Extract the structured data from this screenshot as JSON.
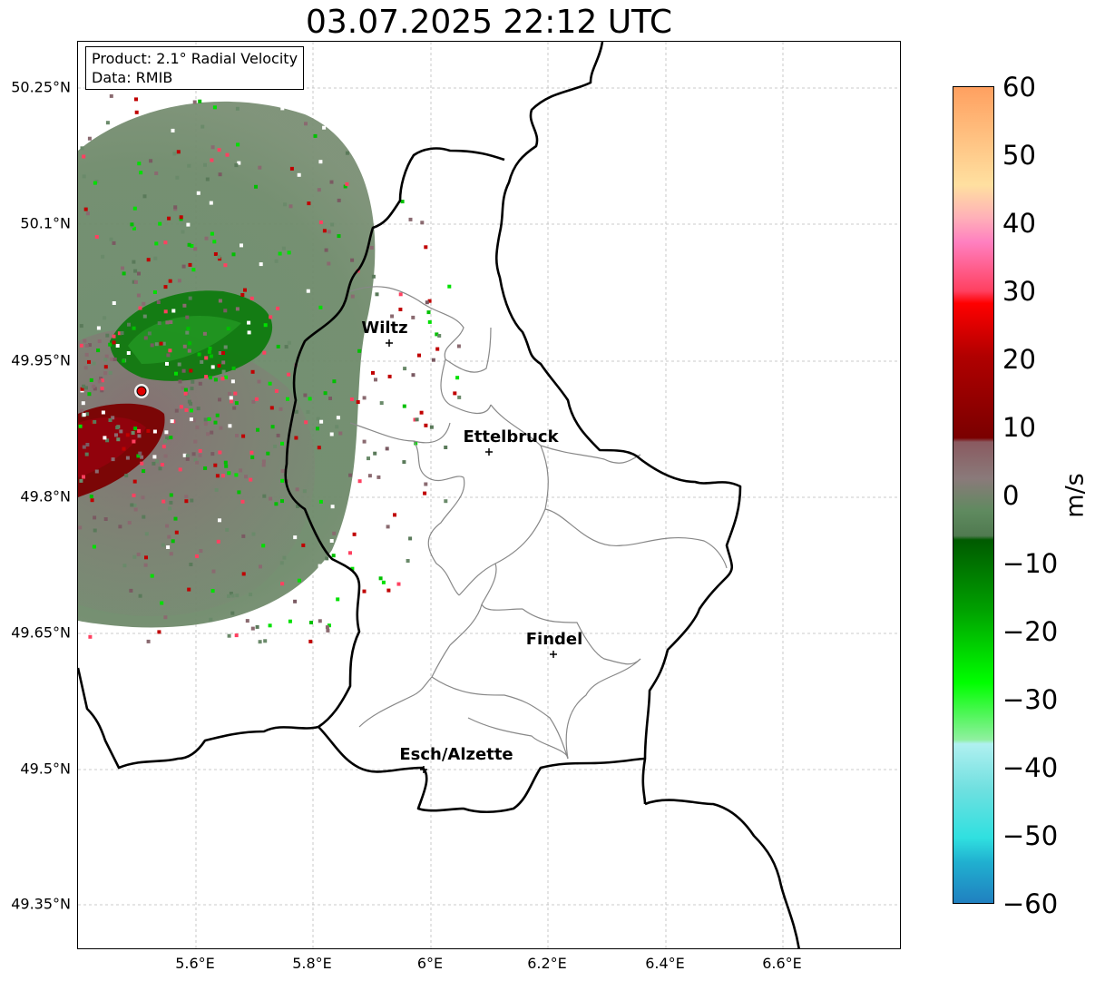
{
  "title": "03.07.2025 22:12 UTC",
  "info": {
    "product": "Product: 2.1° Radial Velocity",
    "data_source": "Data: RMIB"
  },
  "lat_labels": [
    "50.25°N",
    "50.1°N",
    "49.95°N",
    "49.8°N",
    "49.65°N",
    "49.5°N",
    "49.35°N"
  ],
  "lon_labels": [
    "5.6°E",
    "5.8°E",
    "6°E",
    "6.2°E",
    "6.4°E",
    "6.6°E"
  ],
  "cities": [
    "Wiltz",
    "Ettelbruck",
    "Findel",
    "Esch/Alzette"
  ],
  "colorbar": {
    "unit": "m/s",
    "ticks": [
      "60",
      "50",
      "40",
      "30",
      "20",
      "10",
      "0",
      "−10",
      "−20",
      "−30",
      "−40",
      "−50",
      "−60"
    ],
    "range": [
      -60,
      60
    ],
    "colors": {
      "positive_high": "#ffa060",
      "pink": "#ff80c0",
      "red": "#ff0000",
      "dark_red": "#7a0000",
      "neutral": "#8a7a7a",
      "neutral_green": "#5f8a5f",
      "dark_green": "#005a00",
      "bright_green": "#00ff00",
      "light_cyan": "#b0f0f0",
      "cyan": "#30e0e0",
      "blue": "#2080c0"
    }
  }
}
